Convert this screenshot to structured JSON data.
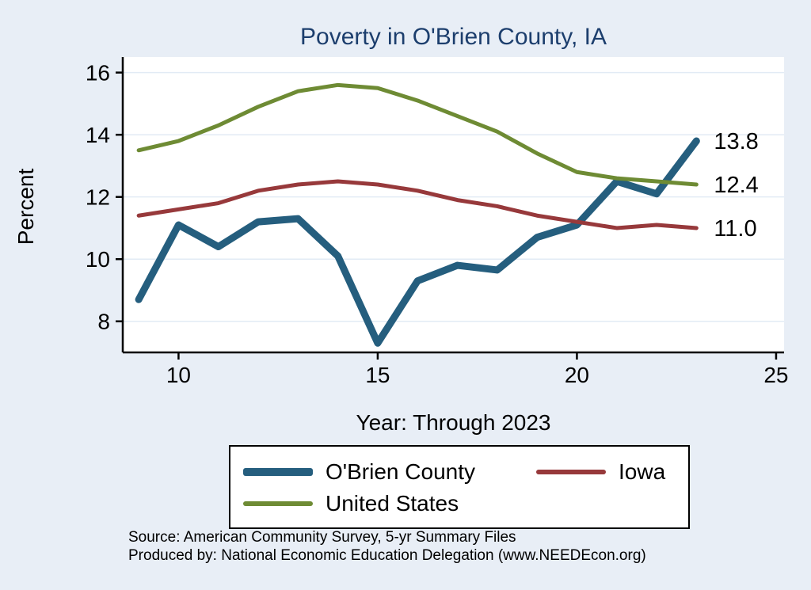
{
  "notes": {
    "source": "Source: American Community Survey, 5-yr Summary Files",
    "produced_by": "Produced by: National Economic Education Delegation (www.NEEDEcon.org)"
  },
  "chart_data": {
    "type": "line",
    "title": "Poverty in O'Brien County, IA",
    "xlabel": "Year: Through 2023",
    "ylabel": "Percent",
    "x": [
      9,
      10,
      11,
      12,
      13,
      14,
      15,
      16,
      17,
      18,
      19,
      20,
      21,
      22,
      23
    ],
    "xticks": [
      10,
      15,
      20,
      25
    ],
    "yticks": [
      8,
      10,
      12,
      14,
      16
    ],
    "xlim": [
      8.6,
      25.2
    ],
    "ylim": [
      7.0,
      16.5
    ],
    "grid": true,
    "legend_position": "bottom",
    "background": "#e8eef6",
    "plot_background": "#ffffff",
    "series": [
      {
        "name": "O'Brien County",
        "color": "#255e7e",
        "width": 9,
        "end_label": "13.8",
        "values": [
          8.7,
          11.1,
          10.4,
          11.2,
          11.3,
          10.1,
          7.3,
          9.3,
          9.8,
          9.65,
          10.7,
          11.1,
          12.5,
          12.1,
          13.8
        ]
      },
      {
        "name": "Iowa",
        "color": "#97393b",
        "width": 5,
        "end_label": "11.0",
        "values": [
          11.4,
          11.6,
          11.8,
          12.2,
          12.4,
          12.5,
          12.4,
          12.2,
          11.9,
          11.7,
          11.4,
          11.2,
          11.0,
          11.1,
          11.0
        ]
      },
      {
        "name": "United States",
        "color": "#6e8b34",
        "width": 5,
        "end_label": "12.4",
        "values": [
          13.5,
          13.8,
          14.3,
          14.9,
          15.4,
          15.6,
          15.5,
          15.1,
          14.6,
          14.1,
          13.4,
          12.8,
          12.6,
          12.5,
          12.4
        ]
      }
    ]
  }
}
